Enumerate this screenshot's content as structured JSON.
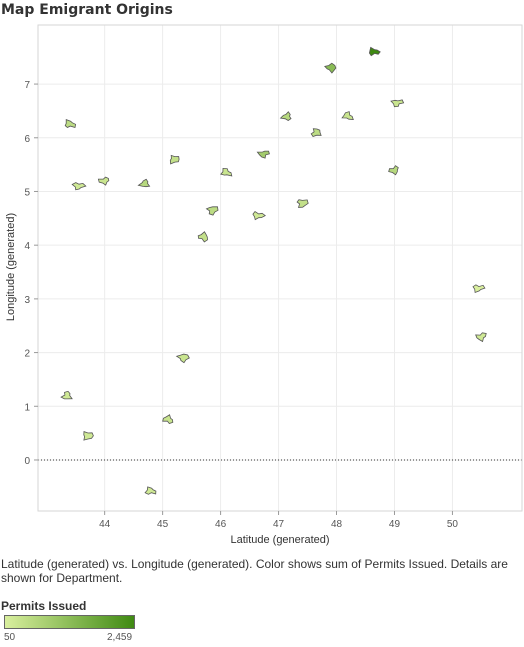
{
  "title": "Map Emigrant Origins",
  "caption": "Latitude (generated) vs. Longitude (generated).  Color shows sum of Permits Issued.  Details are shown for Department.",
  "legend": {
    "title": "Permits Issued",
    "min_label": "50",
    "max_label": "2,459",
    "min_color": "#d9ef9e",
    "max_color": "#3f8a12"
  },
  "chart_data": {
    "type": "scatter",
    "xlabel": "Latitude (generated)",
    "ylabel": "Longitude (generated)",
    "xlim": [
      42.85,
      51.2
    ],
    "ylim": [
      -0.95,
      8.1
    ],
    "x_ticks": [
      44,
      45,
      46,
      47,
      48,
      49,
      50
    ],
    "y_ticks": [
      0,
      1,
      2,
      3,
      4,
      5,
      6,
      7
    ],
    "grid": true,
    "zero_line": "dotted",
    "marker": "department-shape",
    "points": [
      {
        "x": 43.4,
        "y": 6.25,
        "v": 500
      },
      {
        "x": 43.55,
        "y": 5.1,
        "v": 200
      },
      {
        "x": 44.0,
        "y": 5.2,
        "v": 300
      },
      {
        "x": 44.7,
        "y": 5.15,
        "v": 600
      },
      {
        "x": 45.2,
        "y": 5.6,
        "v": 400
      },
      {
        "x": 45.85,
        "y": 4.65,
        "v": 500
      },
      {
        "x": 45.7,
        "y": 4.15,
        "v": 400
      },
      {
        "x": 46.1,
        "y": 5.35,
        "v": 300
      },
      {
        "x": 46.65,
        "y": 4.55,
        "v": 200
      },
      {
        "x": 46.75,
        "y": 5.7,
        "v": 900
      },
      {
        "x": 47.15,
        "y": 6.4,
        "v": 600
      },
      {
        "x": 47.65,
        "y": 6.1,
        "v": 500
      },
      {
        "x": 47.4,
        "y": 4.78,
        "v": 400
      },
      {
        "x": 47.9,
        "y": 7.3,
        "v": 1300
      },
      {
        "x": 48.2,
        "y": 6.4,
        "v": 300
      },
      {
        "x": 48.65,
        "y": 7.6,
        "v": 2459
      },
      {
        "x": 49.05,
        "y": 6.65,
        "v": 300
      },
      {
        "x": 49.0,
        "y": 5.4,
        "v": 600
      },
      {
        "x": 43.35,
        "y": 1.2,
        "v": 200
      },
      {
        "x": 43.7,
        "y": 0.45,
        "v": 200
      },
      {
        "x": 45.35,
        "y": 1.9,
        "v": 300
      },
      {
        "x": 45.1,
        "y": 0.75,
        "v": 300
      },
      {
        "x": 44.8,
        "y": -0.58,
        "v": 200
      },
      {
        "x": 50.45,
        "y": 3.2,
        "v": 50
      },
      {
        "x": 50.5,
        "y": 2.3,
        "v": 200
      }
    ]
  }
}
